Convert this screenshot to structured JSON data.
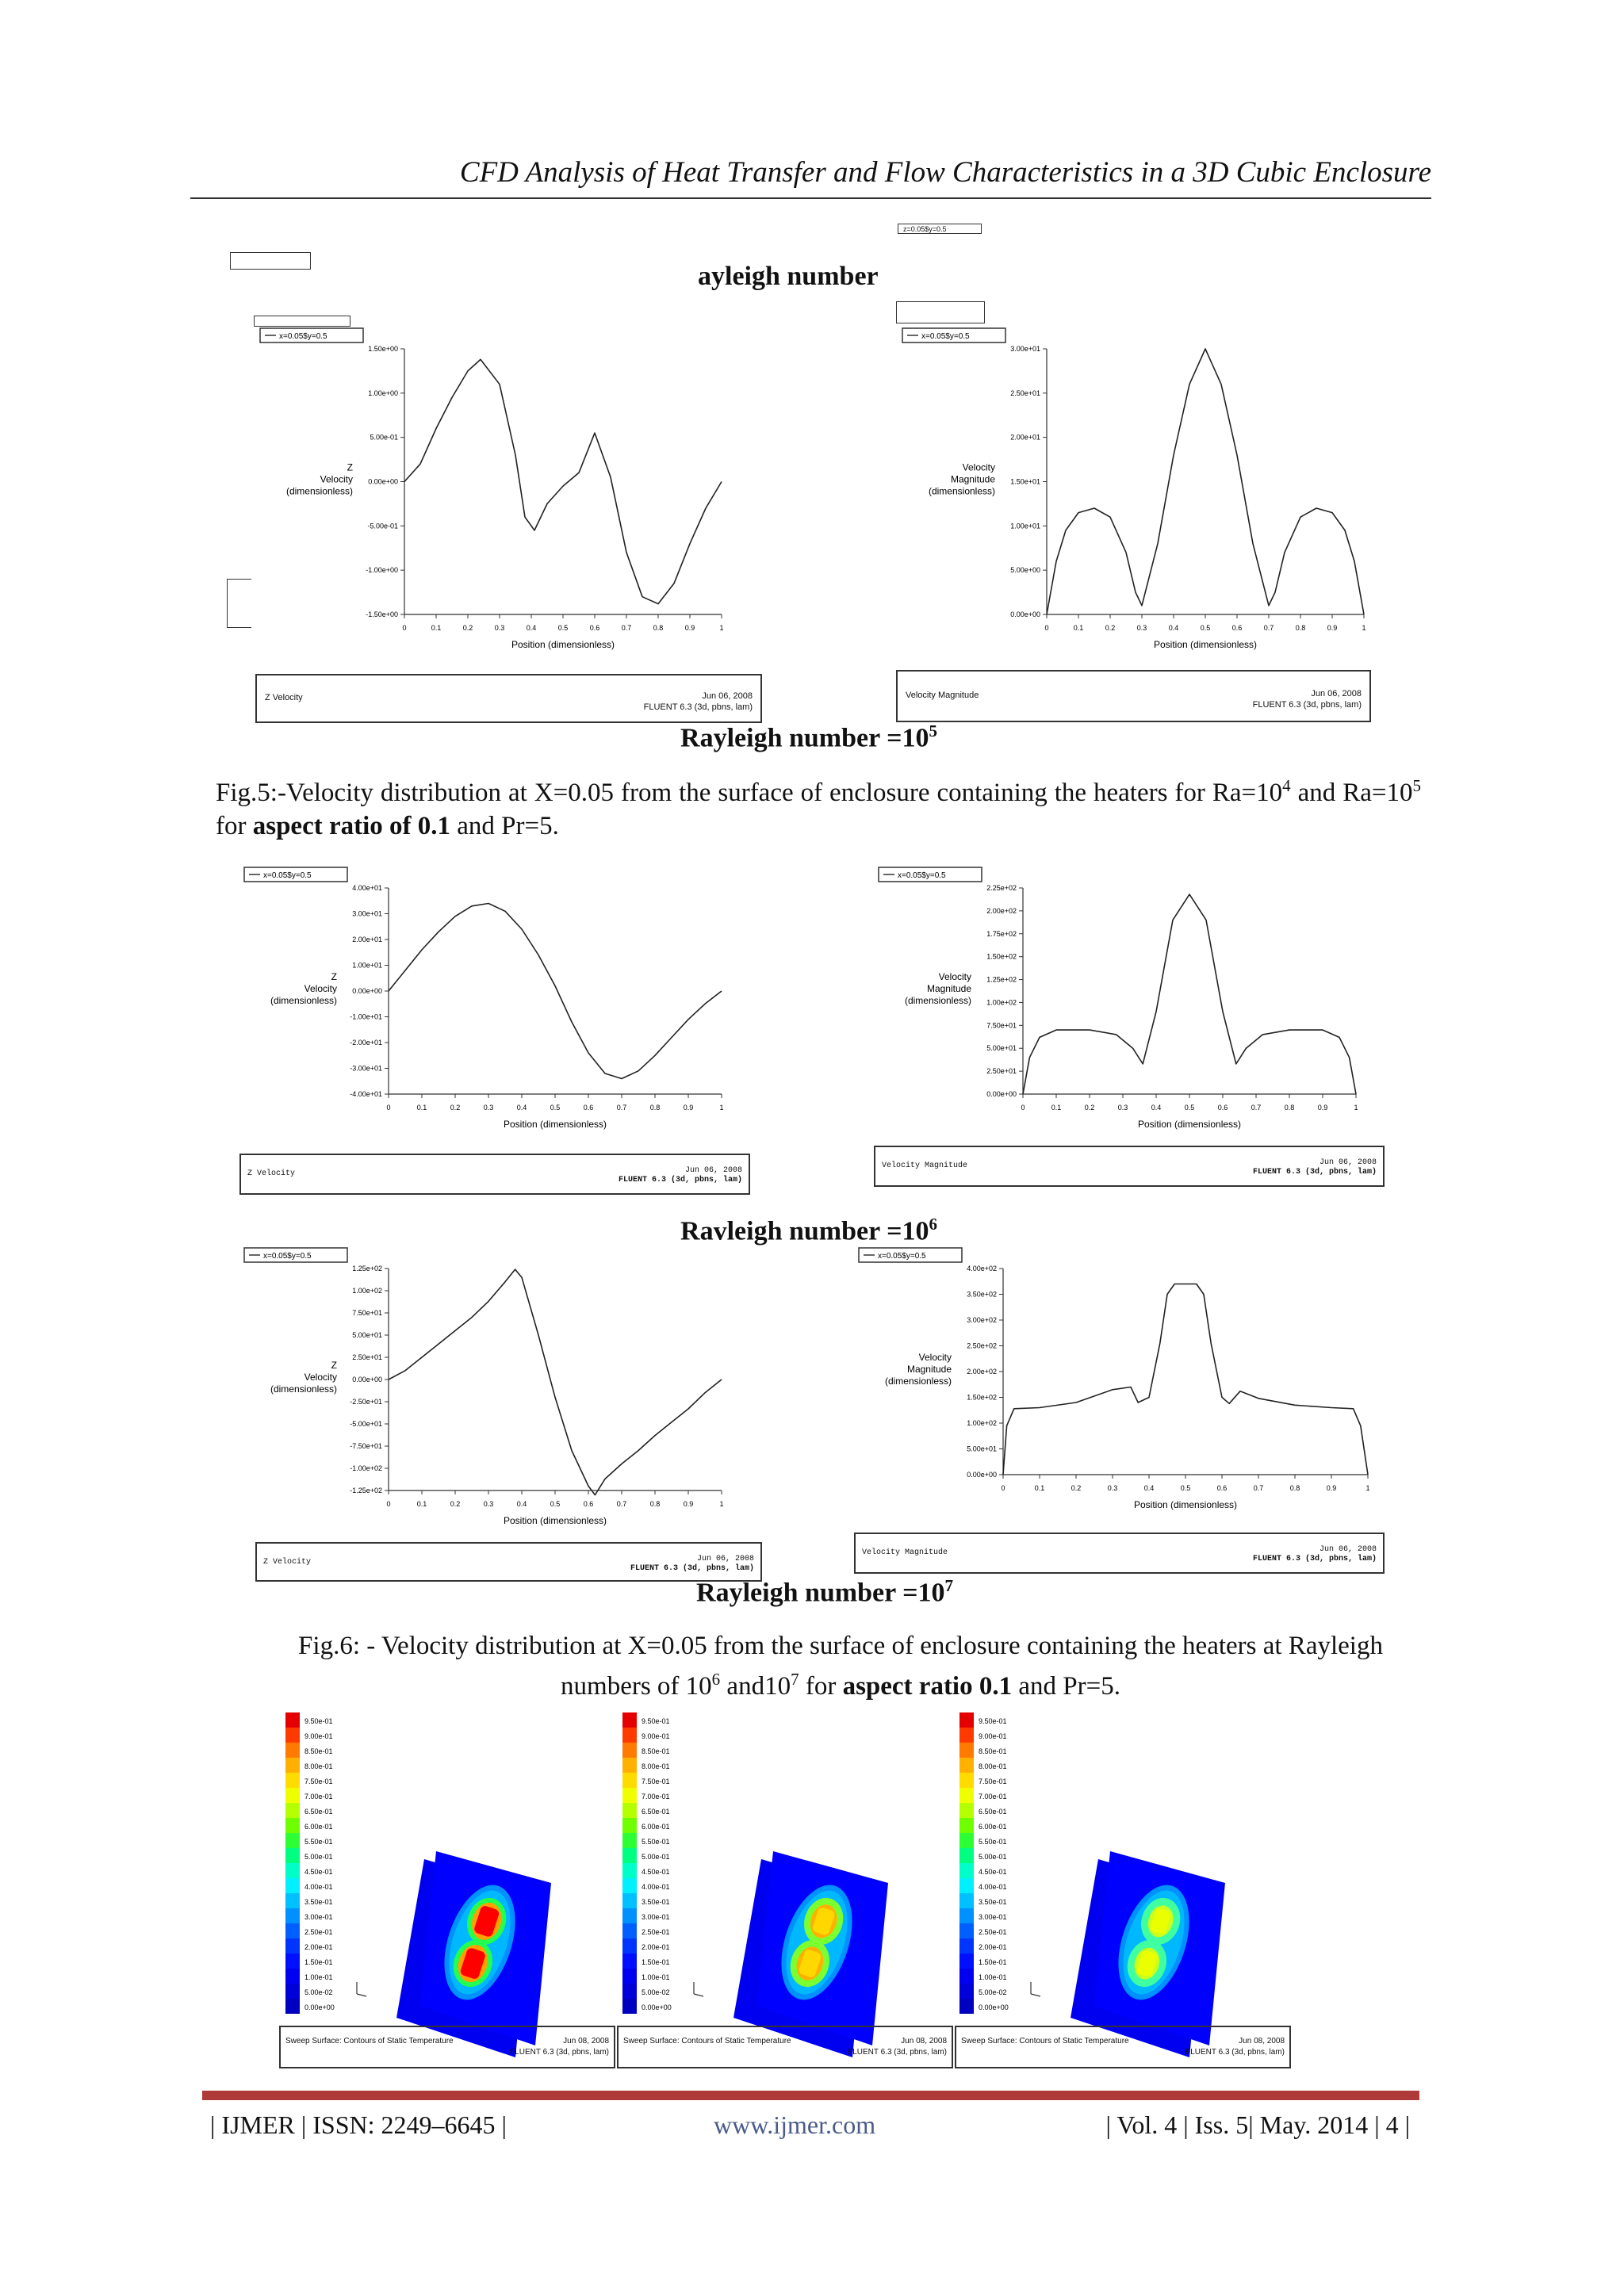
{
  "header": {
    "title": "CFD Analysis of Heat Transfer and Flow Characteristics in a 3D Cubic Enclosure"
  },
  "top_overlay": {
    "text": "ayleigh number",
    "overlay_legend": "z=0.05$y=0.5"
  },
  "legend_label": "x=0.05$y=0.5",
  "ylabel_z": [
    "Z",
    "Velocity",
    "(dimensionless)"
  ],
  "ylabel_mag": [
    "Velocity",
    "Magnitude",
    "(dimensionless)"
  ],
  "xlabel": "Position (dimensionless)",
  "xticks": [
    "0",
    "0.1",
    "0.2",
    "0.3",
    "0.4",
    "0.5",
    "0.6",
    "0.7",
    "0.8",
    "0.9",
    "1"
  ],
  "box_z": "Z Velocity",
  "box_mag": "Velocity Magnitude",
  "box_date": "Jun 06, 2008",
  "box_solver": "FLUENT 6.3 (3d, pbns, lam)",
  "fig5_rayleigh": {
    "text": "Rayleigh number =10",
    "exp": "5"
  },
  "fig5_caption": {
    "p1": "Fig.5:-Velocity distribution at X=0.05 from the surface of enclosure containing the heaters for Ra=10",
    "e1": "4",
    "p2": " and Ra=10",
    "e2": "5",
    "p3": " for ",
    "bold": "aspect ratio of 0.1",
    "p4": " and Pr=5."
  },
  "ra6_label": {
    "text": "Ravleigh number =10",
    "exp": "6"
  },
  "ra7_label": {
    "text": "Rayleigh number =10",
    "exp": "7"
  },
  "fig6_caption": {
    "p1": "Fig.6: - Velocity distribution at X=0.05 from the surface of enclosure containing the heaters at Rayleigh numbers of 10",
    "e1": "6",
    "p2": " and10",
    "e2": "7",
    "p3": " for ",
    "bold": "aspect ratio 0.1",
    "p4": " and Pr=5."
  },
  "contour_box_title": "Sweep Surface: Contours of Static Temperature",
  "contour_box_date": "Jun 08, 2008",
  "contour_scale": [
    "9.50e-01",
    "9.00e-01",
    "8.50e-01",
    "8.00e-01",
    "7.50e-01",
    "7.00e-01",
    "6.50e-01",
    "6.00e-01",
    "5.50e-01",
    "5.00e-01",
    "4.50e-01",
    "4.00e-01",
    "3.50e-01",
    "3.00e-01",
    "2.50e-01",
    "2.00e-01",
    "1.50e-01",
    "1.00e-01",
    "5.00e-02",
    "0.00e+00"
  ],
  "footer": {
    "left": "| IJMER | ISSN: 2249–6645 |",
    "center": "www.ijmer.com",
    "right": "| Vol. 4 | Iss. 5| May. 2014 | 4 |"
  },
  "accent_color": "#b03a3a",
  "chart_data": [
    {
      "id": "fig5-left",
      "type": "line",
      "ylim": [
        -1.5,
        1.5
      ],
      "yticks": [
        "1.50e+00",
        "1.00e+00",
        "5.00e-01",
        "0.00e+00",
        "-5.00e-01",
        "-1.00e+00",
        "-1.50e+00"
      ],
      "ytick_values": [
        1.5,
        1.0,
        0.5,
        0,
        -0.5,
        -1.0,
        -1.5
      ],
      "x": [
        0,
        0.05,
        0.1,
        0.15,
        0.2,
        0.24,
        0.3,
        0.35,
        0.38,
        0.41,
        0.45,
        0.5,
        0.55,
        0.6,
        0.65,
        0.7,
        0.75,
        0.8,
        0.85,
        0.9,
        0.95,
        1.0
      ],
      "y": [
        0,
        0.2,
        0.6,
        0.95,
        1.25,
        1.38,
        1.1,
        0.3,
        -0.4,
        -0.55,
        -0.25,
        -0.05,
        0.1,
        0.55,
        0.05,
        -0.8,
        -1.3,
        -1.38,
        -1.15,
        -0.7,
        -0.3,
        0
      ]
    },
    {
      "id": "fig5-right",
      "type": "line",
      "ylim": [
        0,
        30
      ],
      "yticks": [
        "3.00e+01",
        "2.50e+01",
        "2.00e+01",
        "1.50e+01",
        "1.00e+01",
        "5.00e+00",
        "0.00e+00"
      ],
      "ytick_values": [
        30,
        25,
        20,
        15,
        10,
        5,
        0
      ],
      "x": [
        0,
        0.03,
        0.06,
        0.1,
        0.15,
        0.2,
        0.25,
        0.28,
        0.3,
        0.35,
        0.4,
        0.45,
        0.5,
        0.55,
        0.6,
        0.65,
        0.7,
        0.72,
        0.75,
        0.8,
        0.85,
        0.9,
        0.94,
        0.97,
        1.0
      ],
      "y": [
        0,
        6,
        9.5,
        11.5,
        12,
        11,
        7,
        2.5,
        1,
        8,
        18,
        26,
        30,
        26,
        18,
        8,
        1,
        2.5,
        7,
        11,
        12,
        11.5,
        9.5,
        6,
        0
      ]
    },
    {
      "id": "ra6-left",
      "type": "line",
      "ylim": [
        -40,
        40
      ],
      "yticks": [
        "4.00e+01",
        "3.00e+01",
        "2.00e+01",
        "1.00e+01",
        "0.00e+00",
        "-1.00e+01",
        "-2.00e+01",
        "-3.00e+01",
        "-4.00e+01"
      ],
      "ytick_values": [
        40,
        30,
        20,
        10,
        0,
        -10,
        -20,
        -30,
        -40
      ],
      "x": [
        0,
        0.05,
        0.1,
        0.15,
        0.2,
        0.25,
        0.3,
        0.35,
        0.4,
        0.45,
        0.5,
        0.55,
        0.6,
        0.65,
        0.7,
        0.75,
        0.8,
        0.85,
        0.9,
        0.95,
        1.0
      ],
      "y": [
        0,
        8,
        16,
        23,
        29,
        33,
        34,
        31,
        24,
        14,
        2,
        -12,
        -24,
        -32,
        -34,
        -31,
        -25,
        -18,
        -11,
        -5,
        0
      ]
    },
    {
      "id": "ra6-right",
      "type": "line",
      "ylim": [
        0,
        225
      ],
      "yticks": [
        "2.25e+02",
        "2.00e+02",
        "1.75e+02",
        "1.50e+02",
        "1.25e+02",
        "1.00e+02",
        "7.50e+01",
        "5.00e+01",
        "2.50e+01",
        "0.00e+00"
      ],
      "ytick_values": [
        225,
        200,
        175,
        150,
        125,
        100,
        75,
        50,
        25,
        0
      ],
      "x": [
        0,
        0.02,
        0.05,
        0.1,
        0.2,
        0.28,
        0.33,
        0.36,
        0.4,
        0.45,
        0.5,
        0.55,
        0.6,
        0.64,
        0.67,
        0.72,
        0.8,
        0.9,
        0.95,
        0.98,
        1.0
      ],
      "y": [
        0,
        40,
        62,
        70,
        70,
        65,
        50,
        33,
        90,
        190,
        218,
        190,
        90,
        33,
        50,
        65,
        70,
        70,
        62,
        40,
        0
      ]
    },
    {
      "id": "ra7-left",
      "type": "line",
      "ylim": [
        -125,
        125
      ],
      "yticks": [
        "1.25e+02",
        "1.00e+02",
        "7.50e+01",
        "5.00e+01",
        "2.50e+01",
        "0.00e+00",
        "-2.50e+01",
        "-5.00e+01",
        "-7.50e+01",
        "-1.00e+02",
        "-1.25e+02"
      ],
      "ytick_values": [
        125,
        100,
        75,
        50,
        25,
        0,
        -25,
        -50,
        -75,
        -100,
        -125
      ],
      "x": [
        0,
        0.05,
        0.1,
        0.15,
        0.2,
        0.25,
        0.3,
        0.35,
        0.38,
        0.4,
        0.45,
        0.5,
        0.55,
        0.6,
        0.62,
        0.65,
        0.7,
        0.75,
        0.8,
        0.85,
        0.9,
        0.95,
        1.0
      ],
      "y": [
        0,
        10,
        25,
        40,
        55,
        70,
        88,
        110,
        124,
        115,
        50,
        -20,
        -80,
        -120,
        -130,
        -112,
        -95,
        -80,
        -63,
        -48,
        -33,
        -15,
        0
      ]
    },
    {
      "id": "ra7-right",
      "type": "line",
      "ylim": [
        0,
        400
      ],
      "yticks": [
        "4.00e+02",
        "3.50e+02",
        "3.00e+02",
        "2.50e+02",
        "2.00e+02",
        "1.50e+02",
        "1.00e+02",
        "5.00e+01",
        "0.00e+00"
      ],
      "ytick_values": [
        400,
        350,
        300,
        250,
        200,
        150,
        100,
        50,
        0
      ],
      "x": [
        0,
        0.01,
        0.03,
        0.1,
        0.2,
        0.3,
        0.35,
        0.37,
        0.4,
        0.43,
        0.45,
        0.47,
        0.5,
        0.53,
        0.55,
        0.57,
        0.6,
        0.62,
        0.65,
        0.7,
        0.8,
        0.9,
        0.96,
        0.98,
        1.0
      ],
      "y": [
        0,
        95,
        128,
        130,
        140,
        165,
        170,
        140,
        150,
        255,
        350,
        370,
        370,
        370,
        350,
        255,
        150,
        138,
        162,
        148,
        135,
        130,
        128,
        95,
        0
      ]
    }
  ]
}
